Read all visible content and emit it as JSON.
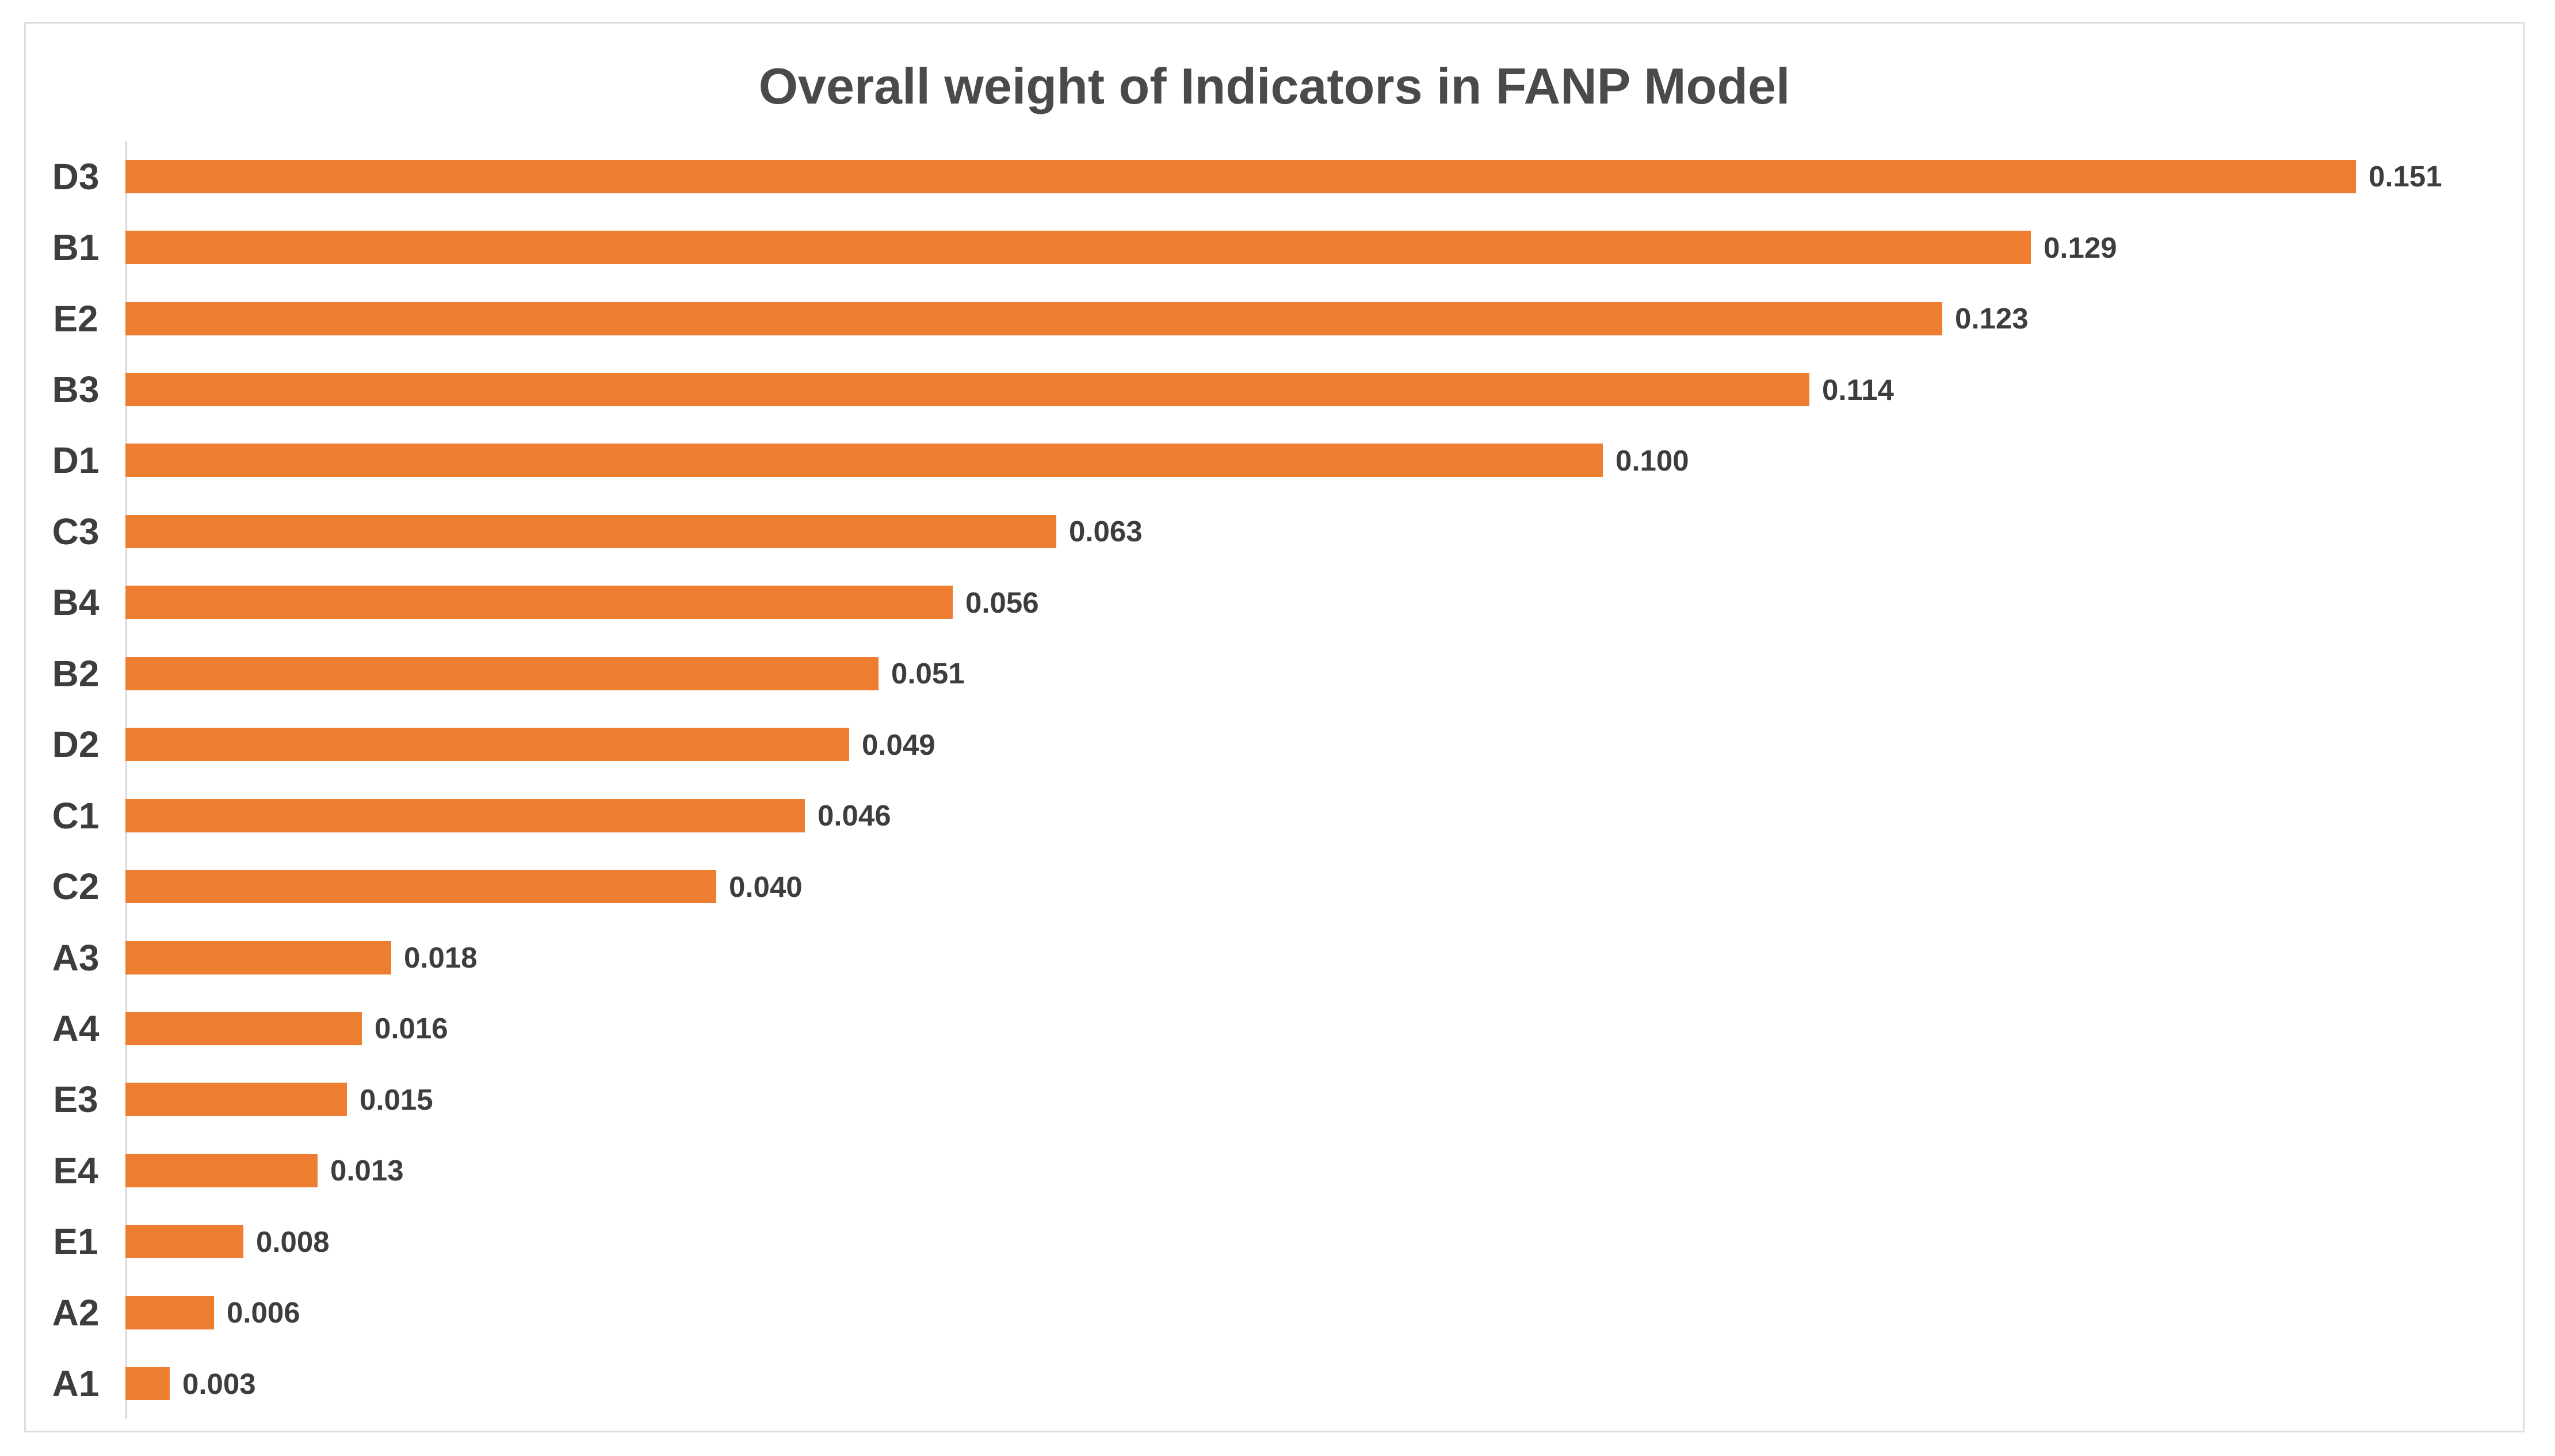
{
  "chart_data": {
    "type": "bar",
    "orientation": "horizontal",
    "title": "Overall weight of Indicators in FANP Model",
    "xlabel": "",
    "ylabel": "",
    "categories": [
      "D3",
      "B1",
      "E2",
      "B3",
      "D1",
      "C3",
      "B4",
      "B2",
      "D2",
      "C1",
      "C2",
      "A3",
      "A4",
      "E3",
      "E4",
      "E1",
      "A2",
      "A1"
    ],
    "values": [
      0.151,
      0.129,
      0.123,
      0.114,
      0.1,
      0.063,
      0.056,
      0.051,
      0.049,
      0.046,
      0.04,
      0.018,
      0.016,
      0.015,
      0.013,
      0.008,
      0.006,
      0.003
    ],
    "value_labels": [
      "0.151",
      "0.129",
      "0.123",
      "0.114",
      "0.100",
      "0.063",
      "0.056",
      "0.051",
      "0.049",
      "0.046",
      "0.040",
      "0.018",
      "0.016",
      "0.015",
      "0.013",
      "0.008",
      "0.006",
      "0.003"
    ],
    "xlim": [
      0,
      0.16
    ],
    "grid": false,
    "legend": false,
    "bar_color": "#ED7D31",
    "text_color": "#3d3d3d",
    "title_color": "#4a4a4a",
    "axis_line_color": "#d6d6d6",
    "frame_border_color": "#dcdcdc"
  }
}
